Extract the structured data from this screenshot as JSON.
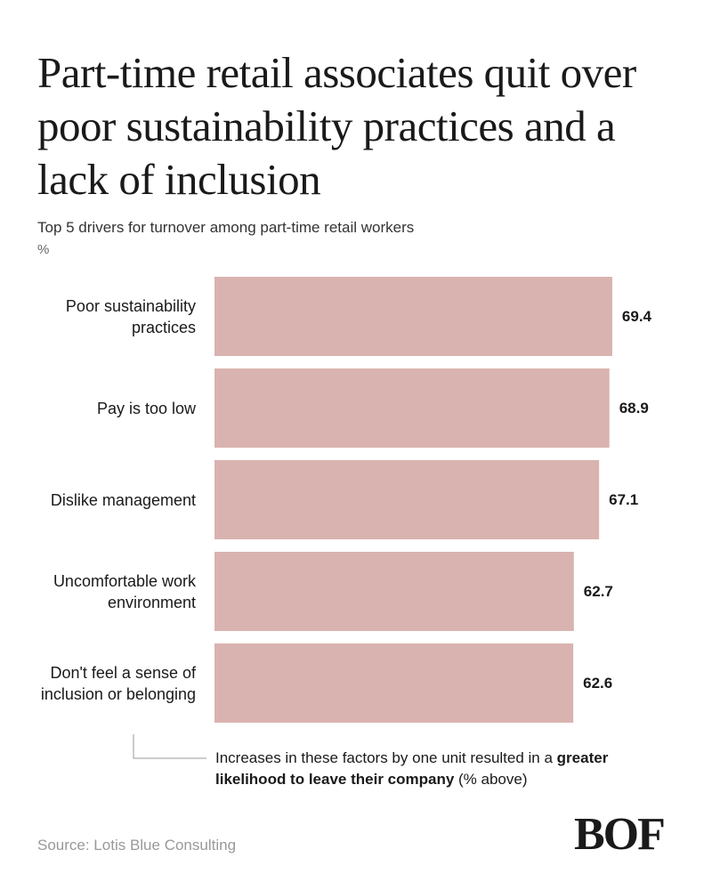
{
  "chart_data": {
    "type": "bar",
    "orientation": "horizontal",
    "title": "Part-time retail associates quit over poor sustainability practices and a lack of inclusion",
    "subtitle": "Top 5 drivers for turnover among part-time retail workers",
    "unit": "%",
    "categories": [
      "Poor sustainability practices",
      "Pay is too low",
      "Dislike management",
      "Uncomfortable work environment",
      "Don't feel a sense of inclusion or belonging"
    ],
    "values": [
      69.4,
      68.9,
      67.1,
      62.7,
      62.6
    ],
    "color": "#d9b3af",
    "annotation": [
      "Increases in these factors by one unit resulted in a ",
      "greater likelihood to leave their company",
      " (% above)"
    ],
    "source": "Source: Lotis Blue Consulting",
    "logo": "BOF"
  }
}
